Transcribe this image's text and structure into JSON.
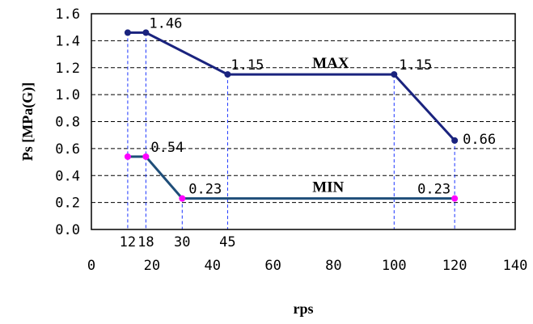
{
  "chart_data": {
    "type": "line",
    "title": "",
    "xlabel": "rps",
    "ylabel": "Ps [MPa(G)]",
    "xlim": [
      0,
      140
    ],
    "ylim": [
      0.0,
      1.6
    ],
    "x_ticks": [
      "0",
      "20",
      "40",
      "60",
      "80",
      "100",
      "120",
      "140"
    ],
    "y_ticks": [
      "0.0",
      "0.2",
      "0.4",
      "0.6",
      "0.8",
      "1.0",
      "1.2",
      "1.4",
      "1.6"
    ],
    "grid": "horizontal dashed",
    "legend": "none",
    "series": [
      {
        "name": "MAX",
        "color": "#1a237e",
        "marker_color": "#1a237e",
        "x": [
          12,
          18,
          45,
          100,
          120
        ],
        "y": [
          1.46,
          1.46,
          1.15,
          1.15,
          0.66
        ]
      },
      {
        "name": "MIN",
        "color": "#1f4e79",
        "marker_color": "#ff00ff",
        "x": [
          12,
          18,
          30,
          120
        ],
        "y": [
          0.54,
          0.54,
          0.23,
          0.23
        ]
      }
    ],
    "reference_x": [
      {
        "x": 12,
        "label": "12"
      },
      {
        "x": 18,
        "label": "18"
      },
      {
        "x": 30,
        "label": "30"
      },
      {
        "x": 45,
        "label": "45"
      },
      {
        "x": 100,
        "label": ""
      },
      {
        "x": 120,
        "label": ""
      }
    ],
    "annotations": [
      {
        "text": "1.46",
        "x": 18,
        "y": 1.46
      },
      {
        "text": "1.15",
        "x": 45,
        "y": 1.15
      },
      {
        "text": "1.15",
        "x": 100,
        "y": 1.15
      },
      {
        "text": "0.66",
        "x": 120,
        "y": 0.66
      },
      {
        "text": "0.54",
        "x": 18,
        "y": 0.54
      },
      {
        "text": "0.23",
        "x": 30,
        "y": 0.23
      },
      {
        "text": "0.23",
        "x": 120,
        "y": 0.23
      }
    ],
    "series_labels": [
      {
        "text": "MAX",
        "x": 73,
        "y": 1.15
      },
      {
        "text": "MIN",
        "x": 73,
        "y": 0.23
      }
    ]
  }
}
